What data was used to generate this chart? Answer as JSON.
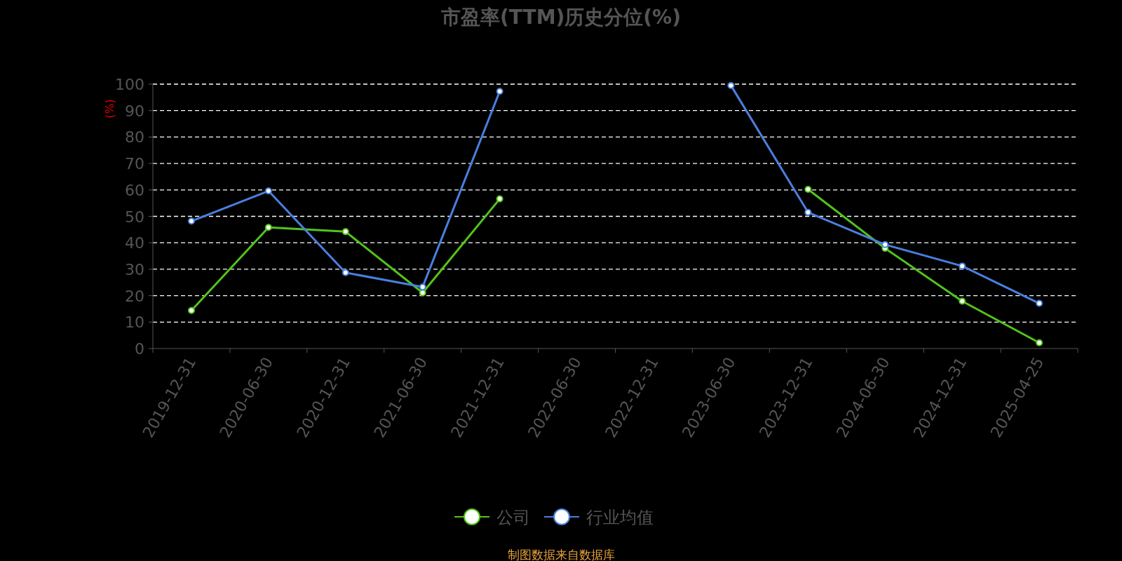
{
  "chart_data": {
    "type": "line",
    "title": "市盈率(TTM)历史分位(%)",
    "ylabel": "(%)",
    "categories": [
      "2019-12-31",
      "2020-06-30",
      "2020-12-31",
      "2021-06-30",
      "2021-12-31",
      "2022-06-30",
      "2022-12-31",
      "2023-06-30",
      "2023-12-31",
      "2024-06-30",
      "2024-12-31",
      "2025-04-25"
    ],
    "series": [
      {
        "name": "公司",
        "color": "#52c41a",
        "values": [
          14.4,
          45.8,
          44.2,
          21.1,
          56.6,
          null,
          null,
          null,
          60.2,
          37.9,
          17.9,
          2.2
        ]
      },
      {
        "name": "行业均值",
        "color": "#4a7fe0",
        "values": [
          48.2,
          59.6,
          28.7,
          23.3,
          97.3,
          null,
          null,
          99.5,
          51.5,
          39.3,
          31.2,
          17.1
        ]
      }
    ],
    "ylim": [
      0,
      100
    ],
    "yticks": [
      0,
      10,
      20,
      30,
      40,
      50,
      60,
      70,
      80,
      90,
      100
    ],
    "grid": "y",
    "legend": "bottom",
    "marker": "circle",
    "line_style": "solid",
    "annotations": [
      "制图数据来自数据库"
    ]
  }
}
